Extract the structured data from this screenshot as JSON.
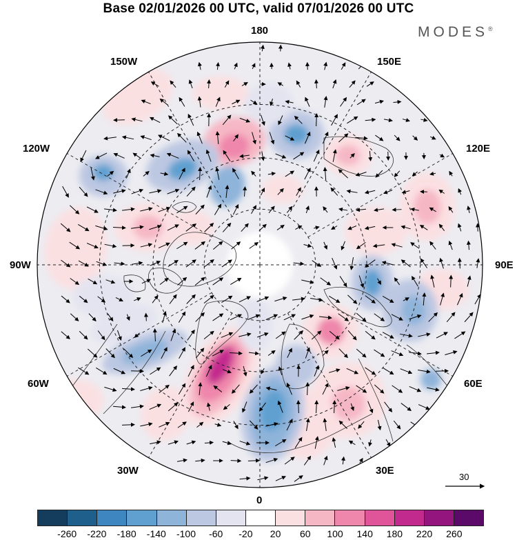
{
  "title": "Base 02/01/2026 00 UTC, valid 07/01/2026 00 UTC",
  "brand": "MODES",
  "brand_mark": "®",
  "longitude_labels": {
    "top": "180",
    "bottom": "0",
    "left": "90W",
    "right": "90E",
    "upper_left_1": "150W",
    "upper_left_2": "120W",
    "lower_left_1": "60W",
    "lower_left_2": "30W",
    "upper_right_1": "150E",
    "upper_right_2": "120E",
    "lower_right_1": "60E",
    "lower_right_2": "30E"
  },
  "reference_vector": "30",
  "colorbar": {
    "colors": [
      "#143c5c",
      "#1f5f8b",
      "#3d86bf",
      "#5fa0d0",
      "#8fb4da",
      "#bcc7e2",
      "#e4e4f1",
      "#ffffff",
      "#fbe0e2",
      "#f6b7c4",
      "#ef86ab",
      "#e0549a",
      "#c32a8e",
      "#94157e",
      "#5b0a6a"
    ],
    "tick_labels": [
      "-260",
      "-220",
      "-180",
      "-140",
      "-100",
      "-60",
      "-20",
      "20",
      "60",
      "100",
      "140",
      "180",
      "220",
      "260"
    ]
  }
}
